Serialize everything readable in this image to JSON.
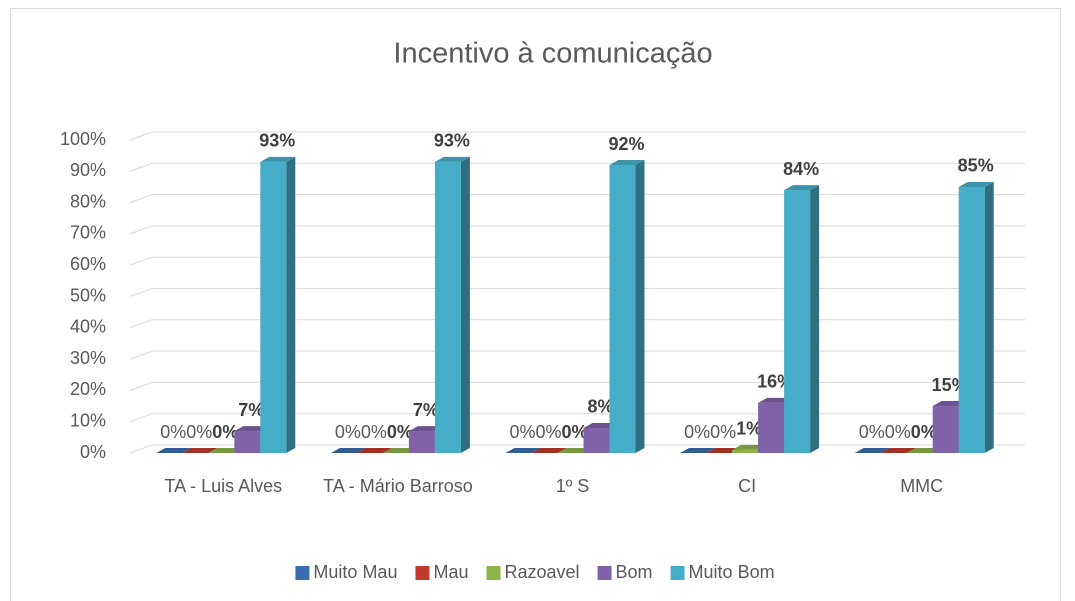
{
  "chart_data": {
    "type": "bar3d",
    "title": "Incentivo à comunicação",
    "categories": [
      "TA - Luis Alves",
      "TA - Mário Barroso",
      "1º S",
      "CI",
      "MMC"
    ],
    "series": [
      {
        "name": "Muito Mau",
        "color": "#3a6cb0",
        "values": [
          0,
          0,
          0,
          0,
          0
        ],
        "value_labels": [
          "0%",
          "0%",
          "0%",
          "0%",
          "0%"
        ]
      },
      {
        "name": "Mau",
        "color": "#c0392b",
        "values": [
          0,
          0,
          0,
          0,
          0
        ],
        "value_labels": [
          "0%",
          "0%",
          "0%",
          "0%",
          "0%"
        ]
      },
      {
        "name": "Razoavel",
        "color": "#8db34a",
        "values": [
          0,
          0,
          0,
          1,
          0
        ],
        "value_labels": [
          "0%",
          "0%",
          "0%",
          "1%",
          "0%"
        ]
      },
      {
        "name": "Bom",
        "color": "#7f62a8",
        "values": [
          7,
          7,
          8,
          16,
          15
        ],
        "value_labels": [
          "7%",
          "7%",
          "8%",
          "16%",
          "15%"
        ]
      },
      {
        "name": "Muito Bom",
        "color": "#46adc8",
        "values": [
          93,
          93,
          92,
          84,
          85
        ],
        "value_labels": [
          "93%",
          "93%",
          "92%",
          "84%",
          "85%"
        ]
      }
    ],
    "ylim": [
      0,
      100
    ],
    "yticks": [
      {
        "value": 0,
        "label": "0%"
      },
      {
        "value": 10,
        "label": "10%"
      },
      {
        "value": 20,
        "label": "20%"
      },
      {
        "value": 30,
        "label": "30%"
      },
      {
        "value": 40,
        "label": "40%"
      },
      {
        "value": 50,
        "label": "50%"
      },
      {
        "value": 60,
        "label": "60%"
      },
      {
        "value": 70,
        "label": "70%"
      },
      {
        "value": 80,
        "label": "80%"
      },
      {
        "value": 90,
        "label": "90%"
      },
      {
        "value": 100,
        "label": "100%"
      }
    ],
    "grid": true,
    "legend": "bottom"
  }
}
